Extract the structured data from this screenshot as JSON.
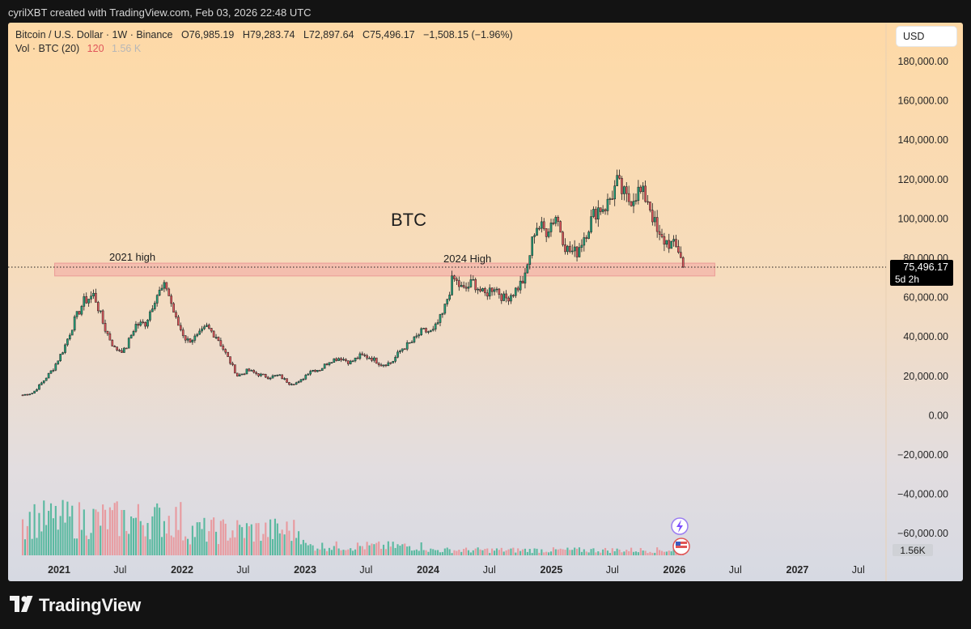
{
  "header": {
    "attribution": "cyrilXBT created with TradingView.com, Feb 03, 2026 22:48 UTC"
  },
  "legend": {
    "symbol": "Bitcoin / U.S. Dollar · 1W · Binance",
    "open": "O76,985.19",
    "high": "H79,283.74",
    "low": "L72,897.64",
    "close": "C75,496.17",
    "change": "−1,508.15 (−1.96%)",
    "volume_label": "Vol · BTC (20)",
    "volume_value": "120",
    "volume_ma": "1.56 K"
  },
  "currency": "USD",
  "footer": {
    "brand": "TradingView"
  },
  "icons": {
    "flash": "flash-icon",
    "flag": "us-flag-icon",
    "logo": "tradingview-logo-icon"
  },
  "colors": {
    "up": "#22a079",
    "down": "#e0565b",
    "zone": "#f0a0a0",
    "price_tag": "#000000"
  },
  "chart_data": {
    "type": "candlestick",
    "title": "BTC",
    "interval": "1W",
    "xlabel": "",
    "ylabel": "",
    "ylim": [
      -65000,
      192000
    ],
    "y_ticks": [
      "180,000.00",
      "160,000.00",
      "140,000.00",
      "120,000.00",
      "100,000.00",
      "80,000.00",
      "60,000.00",
      "40,000.00",
      "20,000.00",
      "0.00",
      "−20,000.00",
      "−40,000.00",
      "−60,000.00"
    ],
    "y_tick_values": [
      180000,
      160000,
      140000,
      120000,
      100000,
      80000,
      60000,
      40000,
      20000,
      0,
      -20000,
      -40000,
      -60000
    ],
    "x_ticks": [
      {
        "label": "2021",
        "date": "2021-01-01",
        "bold": true
      },
      {
        "label": "Jul",
        "date": "2021-07-01",
        "bold": false
      },
      {
        "label": "2022",
        "date": "2022-01-01",
        "bold": true
      },
      {
        "label": "Jul",
        "date": "2022-07-01",
        "bold": false
      },
      {
        "label": "2023",
        "date": "2023-01-01",
        "bold": true
      },
      {
        "label": "Jul",
        "date": "2023-07-01",
        "bold": false
      },
      {
        "label": "2024",
        "date": "2024-01-01",
        "bold": true
      },
      {
        "label": "Jul",
        "date": "2024-07-01",
        "bold": false
      },
      {
        "label": "2025",
        "date": "2025-01-01",
        "bold": true
      },
      {
        "label": "Jul",
        "date": "2025-07-01",
        "bold": false
      },
      {
        "label": "2026",
        "date": "2026-01-01",
        "bold": true
      },
      {
        "label": "Jul",
        "date": "2026-07-01",
        "bold": false
      },
      {
        "label": "2027",
        "date": "2027-01-01",
        "bold": true
      },
      {
        "label": "Jul",
        "date": "2027-07-01",
        "bold": false
      }
    ],
    "candle_closes": [
      {
        "date": "2020-09-15",
        "close": 10500
      },
      {
        "date": "2020-10-15",
        "close": 11500
      },
      {
        "date": "2020-11-15",
        "close": 17500
      },
      {
        "date": "2020-12-15",
        "close": 24000
      },
      {
        "date": "2021-01-15",
        "close": 34000
      },
      {
        "date": "2021-02-15",
        "close": 48000
      },
      {
        "date": "2021-03-15",
        "close": 58000
      },
      {
        "date": "2021-04-15",
        "close": 61500
      },
      {
        "date": "2021-05-15",
        "close": 45000
      },
      {
        "date": "2021-06-15",
        "close": 34000
      },
      {
        "date": "2021-07-15",
        "close": 33000
      },
      {
        "date": "2021-08-15",
        "close": 46000
      },
      {
        "date": "2021-09-15",
        "close": 47000
      },
      {
        "date": "2021-10-15",
        "close": 61000
      },
      {
        "date": "2021-11-15",
        "close": 66000
      },
      {
        "date": "2021-12-15",
        "close": 48000
      },
      {
        "date": "2022-01-15",
        "close": 38000
      },
      {
        "date": "2022-02-15",
        "close": 40000
      },
      {
        "date": "2022-03-15",
        "close": 45000
      },
      {
        "date": "2022-04-15",
        "close": 40000
      },
      {
        "date": "2022-05-15",
        "close": 30000
      },
      {
        "date": "2022-06-15",
        "close": 20000
      },
      {
        "date": "2022-07-15",
        "close": 23000
      },
      {
        "date": "2022-08-15",
        "close": 21000
      },
      {
        "date": "2022-09-15",
        "close": 19500
      },
      {
        "date": "2022-10-15",
        "close": 20500
      },
      {
        "date": "2022-11-15",
        "close": 16500
      },
      {
        "date": "2022-12-15",
        "close": 16800
      },
      {
        "date": "2023-01-15",
        "close": 23000
      },
      {
        "date": "2023-02-15",
        "close": 23500
      },
      {
        "date": "2023-03-15",
        "close": 28000
      },
      {
        "date": "2023-04-15",
        "close": 29500
      },
      {
        "date": "2023-05-15",
        "close": 27000
      },
      {
        "date": "2023-06-15",
        "close": 30500
      },
      {
        "date": "2023-07-15",
        "close": 29500
      },
      {
        "date": "2023-08-15",
        "close": 26000
      },
      {
        "date": "2023-09-15",
        "close": 27000
      },
      {
        "date": "2023-10-15",
        "close": 34000
      },
      {
        "date": "2023-11-15",
        "close": 37500
      },
      {
        "date": "2023-12-15",
        "close": 43000
      },
      {
        "date": "2024-01-15",
        "close": 42500
      },
      {
        "date": "2024-02-15",
        "close": 52000
      },
      {
        "date": "2024-03-15",
        "close": 70000
      },
      {
        "date": "2024-04-15",
        "close": 63500
      },
      {
        "date": "2024-05-15",
        "close": 68000
      },
      {
        "date": "2024-06-15",
        "close": 61000
      },
      {
        "date": "2024-07-15",
        "close": 66000
      },
      {
        "date": "2024-08-15",
        "close": 59000
      },
      {
        "date": "2024-09-15",
        "close": 63500
      },
      {
        "date": "2024-10-15",
        "close": 70000
      },
      {
        "date": "2024-11-15",
        "close": 97000
      },
      {
        "date": "2024-12-15",
        "close": 94000
      },
      {
        "date": "2025-01-15",
        "close": 102000
      },
      {
        "date": "2025-02-15",
        "close": 84500
      },
      {
        "date": "2025-03-15",
        "close": 82500
      },
      {
        "date": "2025-04-15",
        "close": 94000
      },
      {
        "date": "2025-05-15",
        "close": 105000
      },
      {
        "date": "2025-06-15",
        "close": 107000
      },
      {
        "date": "2025-07-15",
        "close": 118000
      },
      {
        "date": "2025-08-15",
        "close": 109000
      },
      {
        "date": "2025-09-15",
        "close": 114000
      },
      {
        "date": "2025-10-15",
        "close": 110000
      },
      {
        "date": "2025-11-15",
        "close": 90000
      },
      {
        "date": "2025-12-15",
        "close": 88000
      },
      {
        "date": "2026-01-15",
        "close": 84000
      },
      {
        "date": "2026-02-01",
        "close": 75496.17
      }
    ],
    "volume_series": {
      "name": "Vol · BTC (20)",
      "last_value": "120",
      "ma_label": "1.56K"
    },
    "annotations": [
      {
        "text": "BTC"
      },
      {
        "text": "2021 high"
      },
      {
        "text": "2024 High"
      }
    ],
    "zone": {
      "low": 71000,
      "high": 77500,
      "from": "2021-01-15",
      "to": "2026-05-15"
    },
    "current_price": {
      "value": 75496.17,
      "label": "75,496.17",
      "countdown": "5d 2h"
    },
    "grid": false,
    "legend_position": "top-left"
  }
}
